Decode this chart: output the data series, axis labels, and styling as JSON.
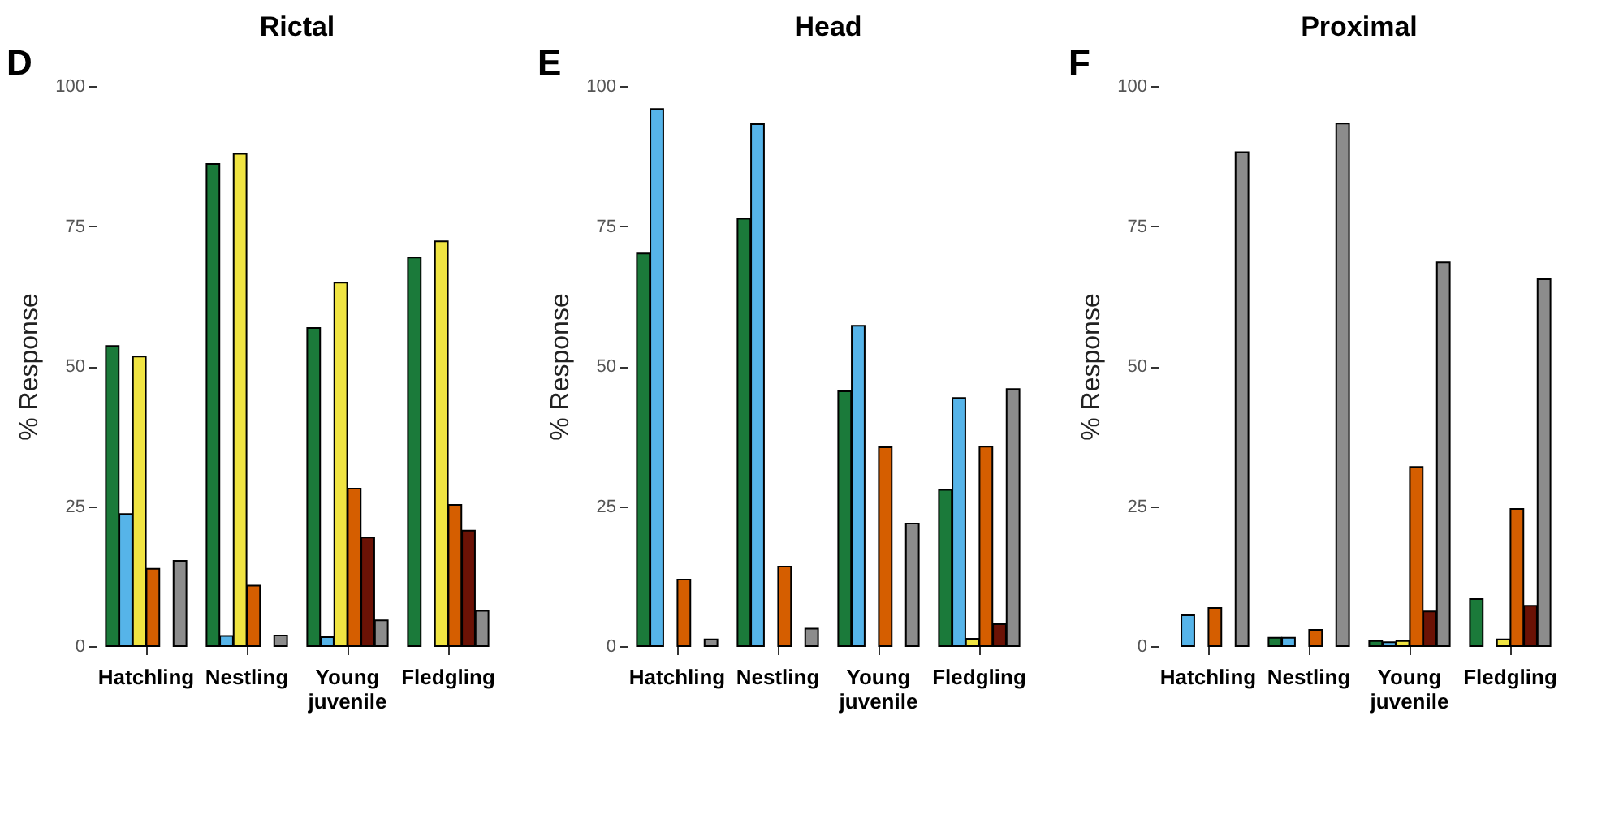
{
  "chart_data": [
    {
      "type": "bar",
      "title": "Rictal",
      "annotations": [
        "D"
      ],
      "ylabel": "% Response",
      "categories": [
        "Hatchling",
        "Nestling",
        "Young juvenile",
        "Fledgling"
      ],
      "ylim": [
        0,
        100
      ],
      "yticks": [
        0,
        25,
        50,
        75,
        100
      ],
      "grid": false,
      "legend": false,
      "series": [
        {
          "color": "#1b7a3a",
          "values": [
            53.6,
            86.1,
            56.8,
            69.4
          ]
        },
        {
          "color": "#56b4e9",
          "values": [
            23.6,
            1.8,
            1.6,
            null
          ]
        },
        {
          "color": "#f0e442",
          "values": [
            51.7,
            87.9,
            64.9,
            72.3
          ]
        },
        {
          "color": "#d55e00",
          "values": [
            13.8,
            10.8,
            28.1,
            25.2
          ]
        },
        {
          "color": "#6b1205",
          "values": [
            null,
            null,
            19.4,
            20.6
          ]
        },
        {
          "color": "#8c8c8c",
          "values": [
            15.2,
            1.9,
            4.6,
            6.3
          ]
        }
      ]
    },
    {
      "type": "bar",
      "title": "Head",
      "annotations": [
        "E"
      ],
      "ylabel": "% Response",
      "categories": [
        "Hatchling",
        "Nestling",
        "Young juvenile",
        "Fledgling"
      ],
      "ylim": [
        0,
        100
      ],
      "yticks": [
        0,
        25,
        50,
        75,
        100
      ],
      "grid": false,
      "legend": false,
      "series": [
        {
          "color": "#1b7a3a",
          "values": [
            70.1,
            76.3,
            45.5,
            27.9
          ]
        },
        {
          "color": "#56b4e9",
          "values": [
            95.9,
            93.2,
            57.2,
            44.3
          ]
        },
        {
          "color": "#f0e442",
          "values": [
            null,
            null,
            null,
            1.3
          ]
        },
        {
          "color": "#d55e00",
          "values": [
            11.9,
            14.2,
            35.5,
            35.6
          ]
        },
        {
          "color": "#6b1205",
          "values": [
            null,
            null,
            null,
            3.9
          ]
        },
        {
          "color": "#8c8c8c",
          "values": [
            1.2,
            3.1,
            21.9,
            45.9
          ]
        }
      ]
    },
    {
      "type": "bar",
      "title": "Proximal",
      "annotations": [
        "F"
      ],
      "ylabel": "% Response",
      "categories": [
        "Hatchling",
        "Nestling",
        "Young juvenile",
        "Fledgling"
      ],
      "ylim": [
        0,
        100
      ],
      "yticks": [
        0,
        25,
        50,
        75,
        100
      ],
      "grid": false,
      "legend": false,
      "series": [
        {
          "color": "#1b7a3a",
          "values": [
            null,
            1.5,
            0.9,
            8.4
          ]
        },
        {
          "color": "#56b4e9",
          "values": [
            5.5,
            1.5,
            0.7,
            null
          ]
        },
        {
          "color": "#f0e442",
          "values": [
            null,
            null,
            0.9,
            1.2
          ]
        },
        {
          "color": "#d55e00",
          "values": [
            6.8,
            2.9,
            32.0,
            24.5
          ]
        },
        {
          "color": "#6b1205",
          "values": [
            null,
            null,
            6.2,
            7.2
          ]
        },
        {
          "color": "#8c8c8c",
          "values": [
            88.2,
            93.3,
            68.5,
            65.5
          ]
        }
      ]
    }
  ]
}
